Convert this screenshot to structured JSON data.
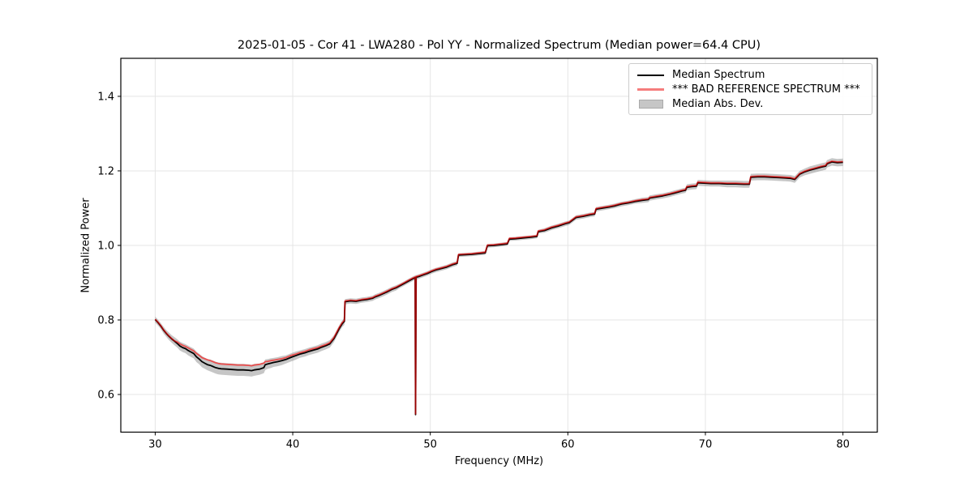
{
  "figure": {
    "background_color": "#ffffff",
    "grid_color": "#e5e5e5",
    "spine_color": "#000000",
    "tick_label_color": "#000000"
  },
  "chart_data": {
    "type": "line",
    "title": "2025-01-05 - Cor 41 - LWA280 - Pol YY - Normalized Spectrum (Median power=64.4 CPU)",
    "xlabel": "Frequency (MHz)",
    "ylabel": "Normalized Power",
    "xlim": [
      27.5,
      82.5
    ],
    "ylim": [
      0.499,
      1.502
    ],
    "xticks": [
      30,
      40,
      50,
      60,
      70,
      80
    ],
    "xtick_labels": [
      "30",
      "40",
      "50",
      "60",
      "70",
      "80"
    ],
    "yticks": [
      0.6,
      0.8,
      1.0,
      1.2,
      1.4
    ],
    "ytick_labels": [
      "0.6",
      "0.8",
      "1.0",
      "1.2",
      "1.4"
    ],
    "grid": true,
    "legend_position": "upper-right",
    "spike": {
      "frequency_mhz": 48.93,
      "min_value": 0.546
    },
    "x": [
      30.0,
      30.2,
      30.4,
      30.6,
      30.8,
      31.0,
      31.2,
      31.4,
      31.6,
      31.8,
      32.0,
      32.2,
      32.4,
      32.6,
      32.8,
      33.0,
      33.2,
      33.4,
      33.6,
      33.8,
      34.0,
      34.2,
      34.4,
      34.6,
      34.8,
      35.2,
      35.6,
      36.0,
      36.4,
      36.8,
      37.0,
      37.2,
      37.6,
      37.9,
      38.0,
      38.2,
      38.4,
      38.6,
      38.9,
      39.2,
      39.5,
      39.9,
      40.2,
      40.5,
      40.9,
      41.2,
      41.5,
      41.8,
      42.1,
      42.4,
      42.7,
      43.0,
      43.2,
      43.4,
      43.6,
      43.75,
      43.8,
      44.2,
      44.6,
      45.0,
      45.4,
      45.8,
      46.0,
      46.3,
      46.6,
      46.9,
      47.2,
      47.5,
      47.8,
      48.1,
      48.4,
      48.7,
      48.9,
      48.93,
      48.97,
      49.2,
      49.5,
      49.8,
      50.1,
      50.4,
      50.8,
      51.2,
      51.6,
      51.95,
      52.05,
      52.5,
      53.0,
      53.5,
      54.0,
      54.15,
      54.6,
      55.1,
      55.6,
      55.75,
      56.2,
      56.7,
      57.3,
      57.75,
      57.85,
      58.3,
      58.8,
      59.3,
      59.8,
      60.1,
      60.6,
      61.1,
      61.6,
      61.95,
      62.05,
      62.5,
      63.0,
      63.4,
      63.9,
      64.4,
      64.9,
      65.4,
      65.85,
      65.95,
      66.4,
      66.9,
      67.4,
      67.7,
      68.0,
      68.3,
      68.55,
      68.65,
      69.0,
      69.35,
      69.45,
      69.9,
      70.4,
      71.0,
      71.6,
      72.2,
      72.8,
      73.2,
      73.3,
      73.8,
      74.3,
      74.8,
      75.3,
      75.8,
      76.2,
      76.5,
      76.85,
      77.2,
      77.6,
      78.0,
      78.4,
      78.75,
      78.85,
      79.2,
      79.6,
      80.0
    ],
    "series": [
      {
        "name": "Median Spectrum",
        "type": "line",
        "color": "#000000",
        "opacity": 1,
        "values": [
          0.801,
          0.793,
          0.784,
          0.773,
          0.764,
          0.756,
          0.749,
          0.743,
          0.737,
          0.73,
          0.726,
          0.723,
          0.718,
          0.714,
          0.71,
          0.701,
          0.695,
          0.688,
          0.684,
          0.68,
          0.678,
          0.675,
          0.672,
          0.67,
          0.669,
          0.668,
          0.667,
          0.666,
          0.666,
          0.665,
          0.664,
          0.666,
          0.668,
          0.672,
          0.68,
          0.682,
          0.684,
          0.686,
          0.688,
          0.691,
          0.694,
          0.7,
          0.704,
          0.708,
          0.712,
          0.716,
          0.719,
          0.722,
          0.727,
          0.731,
          0.736,
          0.75,
          0.764,
          0.778,
          0.79,
          0.796,
          0.849,
          0.851,
          0.85,
          0.853,
          0.855,
          0.858,
          0.862,
          0.866,
          0.871,
          0.876,
          0.882,
          0.886,
          0.892,
          0.898,
          0.904,
          0.91,
          0.9135,
          0.546,
          0.9145,
          0.917,
          0.921,
          0.925,
          0.93,
          0.934,
          0.938,
          0.942,
          0.948,
          0.952,
          0.974,
          0.975,
          0.976,
          0.978,
          0.98,
          0.999,
          1.0,
          1.002,
          1.004,
          1.017,
          1.018,
          1.02,
          1.022,
          1.024,
          1.037,
          1.04,
          1.047,
          1.052,
          1.058,
          1.061,
          1.075,
          1.078,
          1.082,
          1.084,
          1.097,
          1.1,
          1.103,
          1.106,
          1.111,
          1.114,
          1.118,
          1.121,
          1.123,
          1.127,
          1.13,
          1.133,
          1.137,
          1.14,
          1.143,
          1.146,
          1.148,
          1.156,
          1.158,
          1.159,
          1.168,
          1.167,
          1.166,
          1.166,
          1.165,
          1.165,
          1.164,
          1.164,
          1.183,
          1.184,
          1.184,
          1.183,
          1.182,
          1.181,
          1.18,
          1.177,
          1.191,
          1.197,
          1.202,
          1.206,
          1.21,
          1.213,
          1.219,
          1.224,
          1.222,
          1.223
        ]
      },
      {
        "name": "*** BAD REFERENCE SPECTRUM ***",
        "type": "line",
        "color": "#ff0000",
        "opacity": 0.6,
        "legend_color": "#f57d7d",
        "values": [
          0.802,
          0.794,
          0.785,
          0.774,
          0.765,
          0.757,
          0.75,
          0.744,
          0.741,
          0.736,
          0.732,
          0.729,
          0.725,
          0.721,
          0.717,
          0.71,
          0.705,
          0.699,
          0.696,
          0.693,
          0.691,
          0.688,
          0.685,
          0.683,
          0.682,
          0.681,
          0.68,
          0.679,
          0.679,
          0.678,
          0.677,
          0.679,
          0.681,
          0.684,
          0.688,
          0.689,
          0.691,
          0.692,
          0.694,
          0.696,
          0.699,
          0.705,
          0.708,
          0.712,
          0.716,
          0.72,
          0.723,
          0.726,
          0.73,
          0.734,
          0.739,
          0.753,
          0.767,
          0.781,
          0.793,
          0.799,
          0.851,
          0.853,
          0.852,
          0.855,
          0.857,
          0.86,
          0.864,
          0.868,
          0.873,
          0.878,
          0.884,
          0.888,
          0.894,
          0.9,
          0.906,
          0.912,
          0.9155,
          0.548,
          0.9165,
          0.919,
          0.923,
          0.927,
          0.932,
          0.936,
          0.94,
          0.944,
          0.95,
          0.954,
          0.976,
          0.977,
          0.978,
          0.98,
          0.982,
          1.001,
          1.002,
          1.004,
          1.006,
          1.019,
          1.02,
          1.022,
          1.024,
          1.026,
          1.039,
          1.042,
          1.049,
          1.054,
          1.06,
          1.063,
          1.077,
          1.08,
          1.084,
          1.086,
          1.099,
          1.102,
          1.105,
          1.108,
          1.113,
          1.116,
          1.12,
          1.123,
          1.125,
          1.129,
          1.132,
          1.135,
          1.139,
          1.142,
          1.145,
          1.148,
          1.15,
          1.158,
          1.16,
          1.161,
          1.17,
          1.169,
          1.168,
          1.168,
          1.167,
          1.167,
          1.166,
          1.166,
          1.185,
          1.186,
          1.186,
          1.185,
          1.184,
          1.183,
          1.182,
          1.179,
          1.193,
          1.199,
          1.204,
          1.208,
          1.212,
          1.215,
          1.221,
          1.226,
          1.224,
          1.225
        ]
      },
      {
        "name": "Median Abs. Dev.",
        "type": "band",
        "color": "#808080",
        "opacity": 0.45,
        "legend_color": "#c6c6c6",
        "center_series": 0,
        "halfwidth": [
          0.008,
          0.008,
          0.008,
          0.009,
          0.009,
          0.01,
          0.01,
          0.011,
          0.011,
          0.012,
          0.012,
          0.012,
          0.013,
          0.013,
          0.013,
          0.014,
          0.014,
          0.015,
          0.015,
          0.015,
          0.016,
          0.016,
          0.016,
          0.016,
          0.016,
          0.016,
          0.016,
          0.016,
          0.016,
          0.016,
          0.016,
          0.016,
          0.015,
          0.015,
          0.014,
          0.013,
          0.013,
          0.012,
          0.012,
          0.012,
          0.011,
          0.011,
          0.011,
          0.01,
          0.01,
          0.01,
          0.01,
          0.01,
          0.01,
          0.01,
          0.01,
          0.009,
          0.009,
          0.009,
          0.009,
          0.009,
          0.007,
          0.007,
          0.007,
          0.007,
          0.007,
          0.007,
          0.007,
          0.007,
          0.007,
          0.007,
          0.007,
          0.007,
          0.006,
          0.006,
          0.006,
          0.006,
          0.006,
          0.006,
          0.006,
          0.006,
          0.006,
          0.006,
          0.006,
          0.006,
          0.006,
          0.006,
          0.006,
          0.006,
          0.005,
          0.005,
          0.005,
          0.005,
          0.005,
          0.005,
          0.005,
          0.005,
          0.005,
          0.005,
          0.005,
          0.005,
          0.005,
          0.005,
          0.005,
          0.006,
          0.006,
          0.006,
          0.006,
          0.006,
          0.006,
          0.006,
          0.006,
          0.006,
          0.006,
          0.006,
          0.006,
          0.006,
          0.006,
          0.006,
          0.006,
          0.007,
          0.007,
          0.007,
          0.007,
          0.007,
          0.007,
          0.007,
          0.007,
          0.007,
          0.007,
          0.008,
          0.008,
          0.008,
          0.008,
          0.008,
          0.008,
          0.008,
          0.009,
          0.009,
          0.009,
          0.009,
          0.009,
          0.009,
          0.009,
          0.009,
          0.009,
          0.009,
          0.009,
          0.009,
          0.009,
          0.009,
          0.01,
          0.01,
          0.01,
          0.01,
          0.01,
          0.01,
          0.01,
          0.01
        ]
      }
    ]
  }
}
